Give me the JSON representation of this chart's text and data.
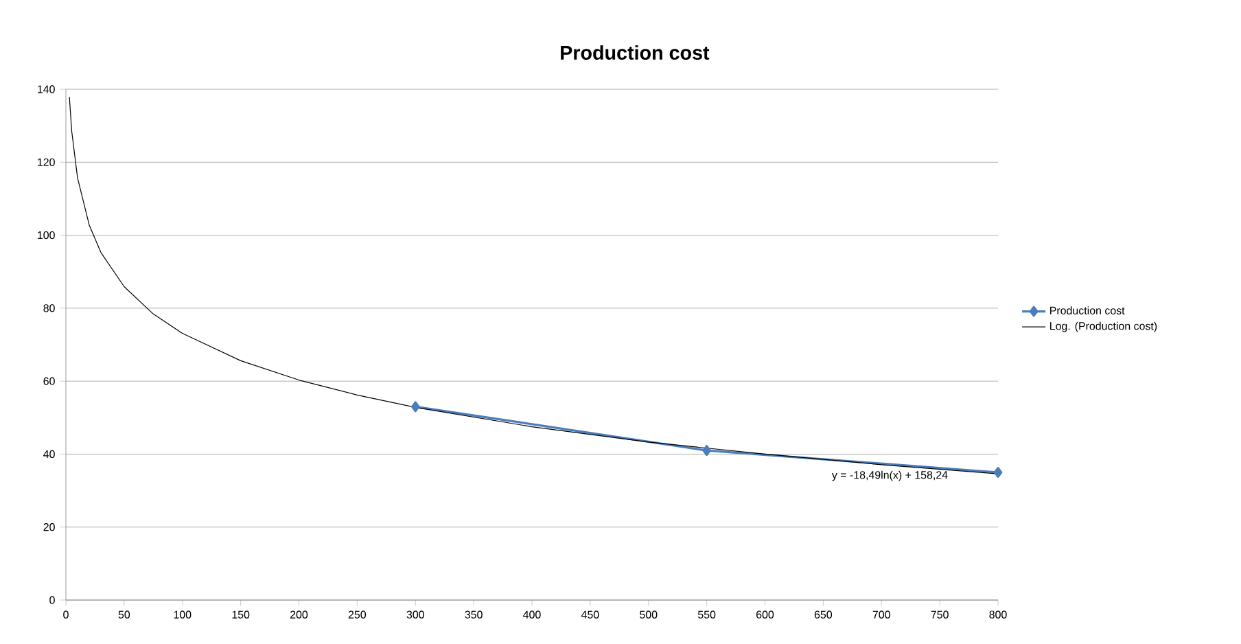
{
  "chart_data": {
    "type": "line",
    "title": "Production cost",
    "xlim": [
      0,
      800
    ],
    "xticks": [
      0,
      50,
      100,
      150,
      200,
      250,
      300,
      350,
      400,
      450,
      500,
      550,
      600,
      650,
      700,
      750,
      800
    ],
    "ylim": [
      0,
      140
    ],
    "yticks": [
      0,
      20,
      40,
      60,
      80,
      100,
      120,
      140
    ],
    "grid": "y",
    "legend": "right",
    "series": [
      {
        "name": "Production cost",
        "color": "#4a7ebb",
        "marker": "diamond",
        "x": [
          300,
          550,
          800
        ],
        "values": [
          53,
          41,
          35
        ]
      },
      {
        "name": "Log. (Production cost)",
        "color": "#000000",
        "marker": "none",
        "x": [
          3,
          5,
          10,
          20,
          30,
          50,
          75,
          100,
          150,
          200,
          250,
          300,
          400,
          500,
          600,
          700,
          800
        ],
        "values": [
          137.9,
          128.5,
          115.7,
          102.8,
          95.3,
          85.9,
          78.4,
          73.1,
          65.6,
          60.3,
          56.2,
          52.8,
          47.5,
          43.3,
          40.0,
          37.1,
          34.6
        ]
      }
    ],
    "annotations": [
      "y = -18,49ln(x) + 158,24"
    ]
  }
}
